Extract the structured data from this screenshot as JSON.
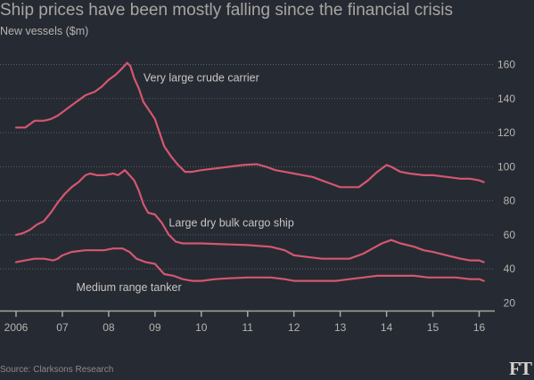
{
  "title": "Ship prices have been mostly falling since the financial crisis",
  "subtitle": "New vessels ($m)",
  "source": "Source: Clarksons Research",
  "logo": "FT",
  "chart_data": {
    "type": "line",
    "grid": true,
    "ylim": [
      20,
      165
    ],
    "xlim": [
      2006,
      2016.5
    ],
    "y_ticks": [
      20,
      40,
      60,
      80,
      100,
      120,
      140,
      160
    ],
    "x_ticks": [
      {
        "value": 2006,
        "label": "2006"
      },
      {
        "value": 2007,
        "label": "07"
      },
      {
        "value": 2008,
        "label": "08"
      },
      {
        "value": 2009,
        "label": "09"
      },
      {
        "value": 2010,
        "label": "10"
      },
      {
        "value": 2011,
        "label": "11"
      },
      {
        "value": 2012,
        "label": "12"
      },
      {
        "value": 2013,
        "label": "13"
      },
      {
        "value": 2014,
        "label": "14"
      },
      {
        "value": 2015,
        "label": "15"
      },
      {
        "value": 2016,
        "label": "16"
      }
    ],
    "colors": {
      "line": "#d4576f",
      "grid": "#5c5f66",
      "axis": "#a8a6a3",
      "background": "#262a33"
    },
    "series": [
      {
        "name": "Very large crude carrier",
        "points": [
          [
            2006.0,
            123
          ],
          [
            2006.2,
            123
          ],
          [
            2006.3,
            125
          ],
          [
            2006.4,
            127
          ],
          [
            2006.6,
            127
          ],
          [
            2006.75,
            128
          ],
          [
            2006.9,
            130
          ],
          [
            2007.0,
            132
          ],
          [
            2007.1,
            134
          ],
          [
            2007.25,
            137
          ],
          [
            2007.4,
            140
          ],
          [
            2007.5,
            142
          ],
          [
            2007.7,
            144
          ],
          [
            2007.85,
            147
          ],
          [
            2008.0,
            151
          ],
          [
            2008.15,
            154
          ],
          [
            2008.3,
            158
          ],
          [
            2008.4,
            161
          ],
          [
            2008.47,
            159
          ],
          [
            2008.55,
            152
          ],
          [
            2008.65,
            146
          ],
          [
            2008.75,
            138
          ],
          [
            2008.9,
            132
          ],
          [
            2009.0,
            128
          ],
          [
            2009.1,
            120
          ],
          [
            2009.2,
            112
          ],
          [
            2009.35,
            106
          ],
          [
            2009.5,
            101
          ],
          [
            2009.65,
            97
          ],
          [
            2009.8,
            97
          ],
          [
            2010.0,
            98
          ],
          [
            2010.3,
            99
          ],
          [
            2010.6,
            100
          ],
          [
            2010.9,
            101
          ],
          [
            2011.2,
            101.5
          ],
          [
            2011.4,
            100
          ],
          [
            2011.6,
            98
          ],
          [
            2011.8,
            97
          ],
          [
            2012.0,
            96
          ],
          [
            2012.2,
            95
          ],
          [
            2012.4,
            94
          ],
          [
            2012.6,
            92
          ],
          [
            2012.8,
            90
          ],
          [
            2013.0,
            88
          ],
          [
            2013.2,
            88
          ],
          [
            2013.4,
            88
          ],
          [
            2013.6,
            92
          ],
          [
            2013.8,
            97
          ],
          [
            2014.0,
            101
          ],
          [
            2014.1,
            100
          ],
          [
            2014.3,
            97
          ],
          [
            2014.5,
            96
          ],
          [
            2014.8,
            95
          ],
          [
            2015.0,
            95
          ],
          [
            2015.3,
            94
          ],
          [
            2015.6,
            93
          ],
          [
            2015.8,
            93
          ],
          [
            2016.0,
            92
          ],
          [
            2016.1,
            91
          ]
        ],
        "label_at": [
          2008.75,
          150
        ]
      },
      {
        "name": "Large dry bulk cargo ship",
        "points": [
          [
            2006.0,
            60
          ],
          [
            2006.15,
            61
          ],
          [
            2006.3,
            63
          ],
          [
            2006.45,
            66
          ],
          [
            2006.6,
            68
          ],
          [
            2006.75,
            73
          ],
          [
            2006.9,
            79
          ],
          [
            2007.05,
            84
          ],
          [
            2007.2,
            88
          ],
          [
            2007.35,
            91
          ],
          [
            2007.5,
            95
          ],
          [
            2007.6,
            96
          ],
          [
            2007.75,
            95
          ],
          [
            2007.9,
            95
          ],
          [
            2008.1,
            96
          ],
          [
            2008.2,
            95
          ],
          [
            2008.3,
            97
          ],
          [
            2008.35,
            98
          ],
          [
            2008.45,
            95
          ],
          [
            2008.55,
            92
          ],
          [
            2008.65,
            86
          ],
          [
            2008.75,
            78
          ],
          [
            2008.85,
            73
          ],
          [
            2009.0,
            72
          ],
          [
            2009.15,
            67
          ],
          [
            2009.3,
            60
          ],
          [
            2009.45,
            56
          ],
          [
            2009.6,
            55
          ],
          [
            2009.8,
            55
          ],
          [
            2010.0,
            55
          ],
          [
            2010.5,
            54.5
          ],
          [
            2011.0,
            54
          ],
          [
            2011.5,
            53
          ],
          [
            2011.8,
            51
          ],
          [
            2012.0,
            48
          ],
          [
            2012.3,
            47
          ],
          [
            2012.6,
            46
          ],
          [
            2012.9,
            46
          ],
          [
            2013.2,
            46
          ],
          [
            2013.5,
            49
          ],
          [
            2013.7,
            52
          ],
          [
            2013.9,
            55
          ],
          [
            2014.1,
            57
          ],
          [
            2014.3,
            55
          ],
          [
            2014.6,
            53
          ],
          [
            2014.8,
            51
          ],
          [
            2015.0,
            50
          ],
          [
            2015.3,
            48
          ],
          [
            2015.6,
            46
          ],
          [
            2015.8,
            45
          ],
          [
            2016.0,
            45
          ],
          [
            2016.1,
            44
          ]
        ],
        "label_at": [
          2009.3,
          65
        ]
      },
      {
        "name": "Medium range tanker",
        "points": [
          [
            2006.0,
            44
          ],
          [
            2006.2,
            45
          ],
          [
            2006.4,
            46
          ],
          [
            2006.6,
            46
          ],
          [
            2006.8,
            45
          ],
          [
            2006.9,
            46
          ],
          [
            2007.0,
            48
          ],
          [
            2007.2,
            50
          ],
          [
            2007.5,
            51
          ],
          [
            2007.7,
            51
          ],
          [
            2007.9,
            51
          ],
          [
            2008.1,
            52
          ],
          [
            2008.3,
            52
          ],
          [
            2008.45,
            50
          ],
          [
            2008.6,
            46
          ],
          [
            2008.8,
            44
          ],
          [
            2009.0,
            43
          ],
          [
            2009.1,
            40
          ],
          [
            2009.2,
            37
          ],
          [
            2009.4,
            36
          ],
          [
            2009.6,
            34
          ],
          [
            2009.8,
            33
          ],
          [
            2010.0,
            33
          ],
          [
            2010.3,
            34
          ],
          [
            2010.6,
            34.5
          ],
          [
            2011.0,
            35
          ],
          [
            2011.5,
            35
          ],
          [
            2011.8,
            34
          ],
          [
            2012.0,
            33
          ],
          [
            2012.3,
            33
          ],
          [
            2012.6,
            33
          ],
          [
            2012.9,
            33
          ],
          [
            2013.2,
            34
          ],
          [
            2013.5,
            35
          ],
          [
            2013.8,
            36
          ],
          [
            2014.0,
            36
          ],
          [
            2014.3,
            36
          ],
          [
            2014.6,
            36
          ],
          [
            2014.9,
            35
          ],
          [
            2015.2,
            35
          ],
          [
            2015.5,
            35
          ],
          [
            2015.8,
            34
          ],
          [
            2016.0,
            34
          ],
          [
            2016.1,
            33
          ]
        ],
        "label_at": [
          2007.3,
          27
        ]
      }
    ]
  }
}
